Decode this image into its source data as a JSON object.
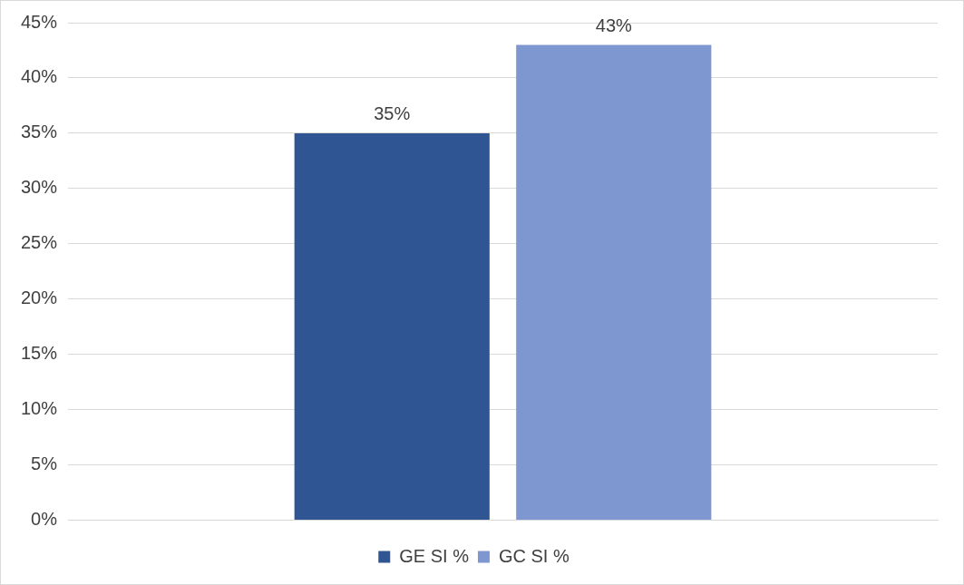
{
  "chart_data": {
    "type": "bar",
    "categories": [
      null
    ],
    "series": [
      {
        "name": "GE SI %",
        "color": "#305593",
        "values": [
          35
        ],
        "value_labels": [
          "35%"
        ]
      },
      {
        "name": "GC SI %",
        "color": "#7f97d0",
        "values": [
          43
        ],
        "value_labels": [
          "43%"
        ]
      }
    ],
    "ylim": [
      0,
      45
    ],
    "yticks": [
      {
        "value": 0,
        "label": "0%"
      },
      {
        "value": 5,
        "label": "5%"
      },
      {
        "value": 10,
        "label": "10%"
      },
      {
        "value": 15,
        "label": "15%"
      },
      {
        "value": 20,
        "label": "20%"
      },
      {
        "value": 25,
        "label": "25%"
      },
      {
        "value": 30,
        "label": "30%"
      },
      {
        "value": 35,
        "label": "35%"
      },
      {
        "value": 40,
        "label": "40%"
      },
      {
        "value": 45,
        "label": "45%"
      }
    ],
    "grid": "y",
    "legend": "bottom"
  }
}
